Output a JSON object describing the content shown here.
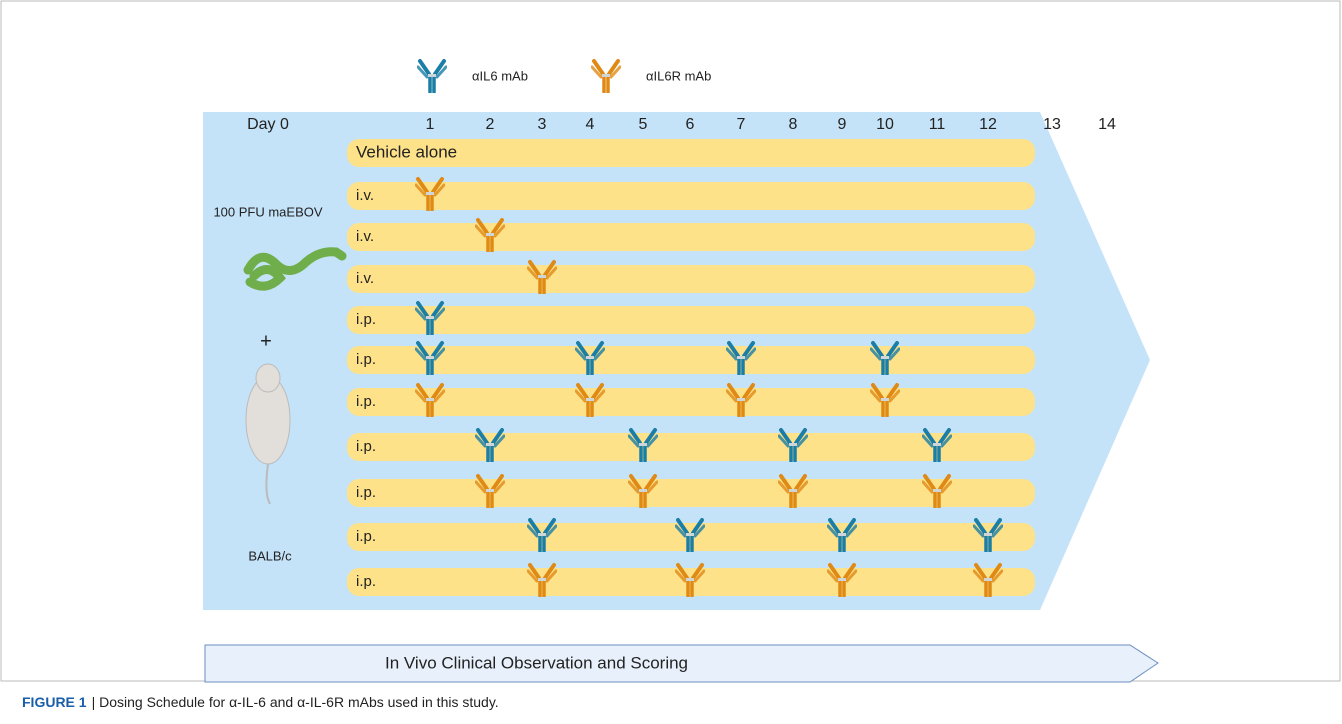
{
  "legend": [
    {
      "label": "αIL6 mAb",
      "color": "#1b7ea6"
    },
    {
      "label": "αIL6R mAb",
      "color": "#e08a16"
    }
  ],
  "days": [
    "Day 0",
    "1",
    "2",
    "3",
    "4",
    "5",
    "6",
    "7",
    "8",
    "9",
    "10",
    "11",
    "12",
    "13",
    "14"
  ],
  "left": {
    "virus": "100 PFU maEBOV",
    "plus": "+",
    "mouse": "BALB/c"
  },
  "rows": [
    {
      "label": "Vehicle alone"
    },
    {
      "label": "i.v.",
      "antibody": "αIL6R mAb",
      "doses": [
        1
      ]
    },
    {
      "label": "i.v.",
      "antibody": "αIL6R mAb",
      "doses": [
        2
      ]
    },
    {
      "label": "i.v.",
      "antibody": "αIL6R mAb",
      "doses": [
        3
      ]
    },
    {
      "label": "i.p.",
      "antibody": "αIL6 mAb",
      "doses": [
        1
      ]
    },
    {
      "label": "i.p.",
      "antibody": "αIL6 mAb",
      "doses": [
        1,
        4,
        7,
        10
      ]
    },
    {
      "label": "i.p.",
      "antibody": "αIL6R mAb",
      "doses": [
        1,
        4,
        7,
        10
      ]
    },
    {
      "label": "i.p.",
      "antibody": "αIL6 mAb",
      "doses": [
        2,
        5,
        8,
        11
      ]
    },
    {
      "label": "i.p.",
      "antibody": "αIL6R mAb",
      "doses": [
        2,
        5,
        8,
        11
      ]
    },
    {
      "label": "i.p.",
      "antibody": "αIL6 mAb",
      "doses": [
        3,
        6,
        9,
        12
      ]
    },
    {
      "label": "i.p.",
      "antibody": "αIL6R mAb",
      "doses": [
        3,
        6,
        9,
        12
      ]
    }
  ],
  "observation": "In Vivo Clinical Observation and Scoring",
  "caption": {
    "label": "FIGURE 1",
    "text": "| Dosing Schedule for α-IL-6 and α-IL-6R mAbs used in this study."
  }
}
